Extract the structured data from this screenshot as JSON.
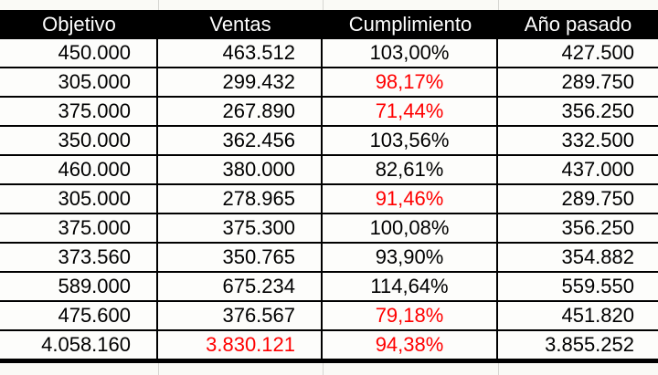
{
  "table": {
    "columns": [
      {
        "label": "Objetivo",
        "align": "right"
      },
      {
        "label": "Ventas",
        "align": "right"
      },
      {
        "label": "Cumplimiento",
        "align": "center"
      },
      {
        "label": "Año pasado",
        "align": "right"
      }
    ],
    "rows": [
      {
        "is_total": false,
        "cells": [
          {
            "text": "450.000",
            "red": false
          },
          {
            "text": "463.512",
            "red": false
          },
          {
            "text": "103,00%",
            "red": false
          },
          {
            "text": "427.500",
            "red": false
          }
        ]
      },
      {
        "is_total": false,
        "cells": [
          {
            "text": "305.000",
            "red": false
          },
          {
            "text": "299.432",
            "red": false
          },
          {
            "text": "98,17%",
            "red": true
          },
          {
            "text": "289.750",
            "red": false
          }
        ]
      },
      {
        "is_total": false,
        "cells": [
          {
            "text": "375.000",
            "red": false
          },
          {
            "text": "267.890",
            "red": false
          },
          {
            "text": "71,44%",
            "red": true
          },
          {
            "text": "356.250",
            "red": false
          }
        ]
      },
      {
        "is_total": false,
        "cells": [
          {
            "text": "350.000",
            "red": false
          },
          {
            "text": "362.456",
            "red": false
          },
          {
            "text": "103,56%",
            "red": false
          },
          {
            "text": "332.500",
            "red": false
          }
        ]
      },
      {
        "is_total": false,
        "cells": [
          {
            "text": "460.000",
            "red": false
          },
          {
            "text": "380.000",
            "red": false
          },
          {
            "text": "82,61%",
            "red": false
          },
          {
            "text": "437.000",
            "red": false
          }
        ]
      },
      {
        "is_total": false,
        "cells": [
          {
            "text": "305.000",
            "red": false
          },
          {
            "text": "278.965",
            "red": false
          },
          {
            "text": "91,46%",
            "red": true
          },
          {
            "text": "289.750",
            "red": false
          }
        ]
      },
      {
        "is_total": false,
        "cells": [
          {
            "text": "375.000",
            "red": false
          },
          {
            "text": "375.300",
            "red": false
          },
          {
            "text": "100,08%",
            "red": false
          },
          {
            "text": "356.250",
            "red": false
          }
        ]
      },
      {
        "is_total": false,
        "cells": [
          {
            "text": "373.560",
            "red": false
          },
          {
            "text": "350.765",
            "red": false
          },
          {
            "text": "93,90%",
            "red": false
          },
          {
            "text": "354.882",
            "red": false
          }
        ]
      },
      {
        "is_total": false,
        "cells": [
          {
            "text": "589.000",
            "red": false
          },
          {
            "text": "675.234",
            "red": false
          },
          {
            "text": "114,64%",
            "red": false
          },
          {
            "text": "559.550",
            "red": false
          }
        ]
      },
      {
        "is_total": false,
        "cells": [
          {
            "text": "475.600",
            "red": false
          },
          {
            "text": "376.567",
            "red": false
          },
          {
            "text": "79,18%",
            "red": true
          },
          {
            "text": "451.820",
            "red": false
          }
        ]
      },
      {
        "is_total": true,
        "cells": [
          {
            "text": "4.058.160",
            "red": false
          },
          {
            "text": "3.830.121",
            "red": true
          },
          {
            "text": "94,38%",
            "red": true
          },
          {
            "text": "3.855.252",
            "red": false
          }
        ]
      }
    ],
    "colors": {
      "header_bg": "#000000",
      "header_text": "#ffffff",
      "body_text": "#000000",
      "alert_text": "#ff0000",
      "grid_border": "#000000",
      "sheet_gridline": "#d6d6d2"
    }
  }
}
